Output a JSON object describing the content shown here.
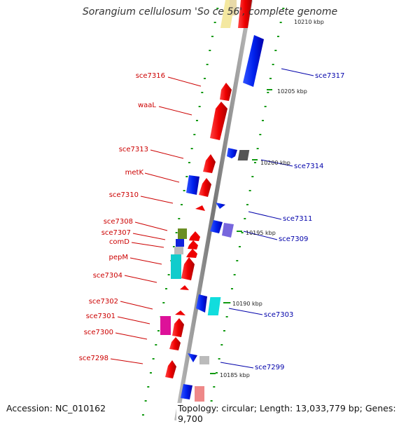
{
  "title": "Sorangium cellulosum 'So ce 56', complete genome",
  "accession": "Accession: NC_010162",
  "topology": "Topology: circular; Length: 13,033,779 bp; Genes: 9,700",
  "colors": {
    "label_left": "#cc0000",
    "label_right": "#0000aa",
    "tick": "#119911",
    "backbone": "#888888"
  },
  "kbp_labels": [
    "10210 kbp",
    "10205 kbp",
    "10200 kbp",
    "10195 kbp",
    "10190 kbp",
    "10185 kbp"
  ],
  "genes_left": [
    "sce7316",
    "waaL",
    "sce7313",
    "metK",
    "sce7310",
    "sce7308",
    "sce7307",
    "comD",
    "pepM",
    "sce7304",
    "sce7302",
    "sce7301",
    "sce7300",
    "sce7298"
  ],
  "genes_right": [
    "sce7317",
    "sce7314",
    "sce7311",
    "sce7309",
    "sce7303",
    "sce7299"
  ]
}
